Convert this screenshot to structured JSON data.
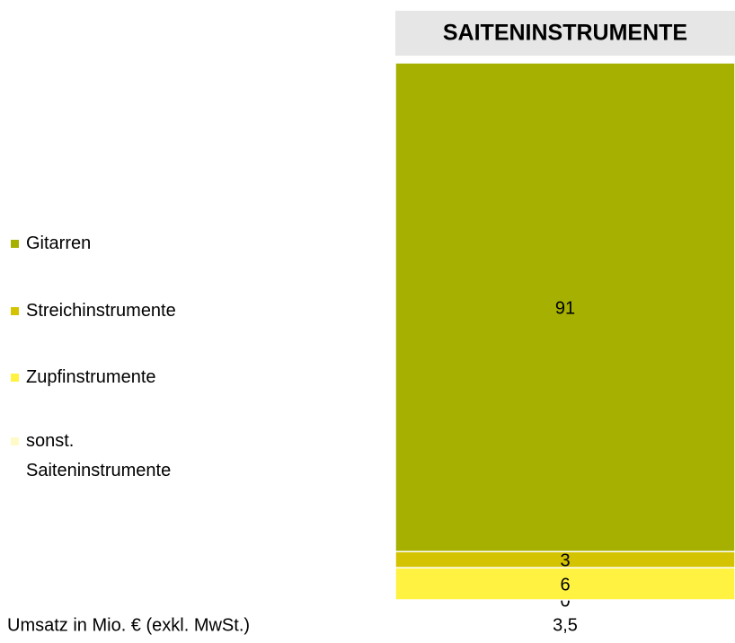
{
  "chart_data": {
    "type": "stacked-bar",
    "title": "SAITENINSTRUMENTE",
    "ylim": [
      0,
      100
    ],
    "series": [
      {
        "name": "Gitarren",
        "color": "#a5b000",
        "values": [
          91
        ]
      },
      {
        "name": "Streichinstrumente",
        "color": "#d4c300",
        "values": [
          3
        ]
      },
      {
        "name": "Zupfinstrumente",
        "color": "#fff240",
        "values": [
          6
        ]
      },
      {
        "name": "sonst. Saiteninstrumente",
        "color": "#fffbc8",
        "values": [
          0
        ]
      }
    ],
    "footer": {
      "label": "Umsatz in Mio. € (exkl. MwSt.)",
      "value": 3.5,
      "value_label": "3,5"
    }
  }
}
